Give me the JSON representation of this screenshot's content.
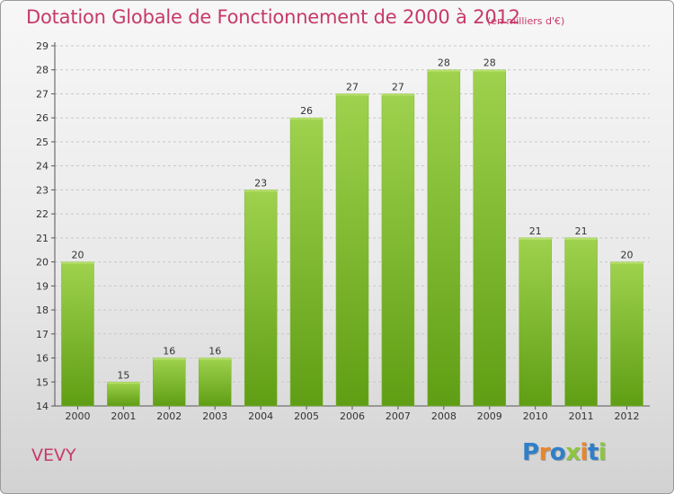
{
  "chart_data": {
    "type": "bar",
    "title": "Dotation Globale de Fonctionnement de 2000 à 2012",
    "subtitle": "(en milliers d'€)",
    "categories": [
      "2000",
      "2001",
      "2002",
      "2003",
      "2004",
      "2005",
      "2006",
      "2007",
      "2008",
      "2009",
      "2010",
      "2011",
      "2012"
    ],
    "values": [
      20,
      15,
      16,
      16,
      23,
      26,
      27,
      27,
      28,
      28,
      21,
      21,
      20
    ],
    "ylim": [
      14,
      29
    ],
    "yticks": [
      14,
      15,
      16,
      17,
      18,
      19,
      20,
      21,
      22,
      23,
      24,
      25,
      26,
      27,
      28,
      29
    ],
    "grid": true,
    "bar_color": "#7fbf2e"
  },
  "place_name": "VEVY",
  "logo": {
    "letters": [
      "P",
      "r",
      "o",
      "x",
      "i",
      "t",
      "i"
    ],
    "colors": [
      "#2f7fc8",
      "#e8862a",
      "#2f7fc8",
      "#8cc63f",
      "#e8862a",
      "#2f7fc8",
      "#8cc63f"
    ]
  }
}
